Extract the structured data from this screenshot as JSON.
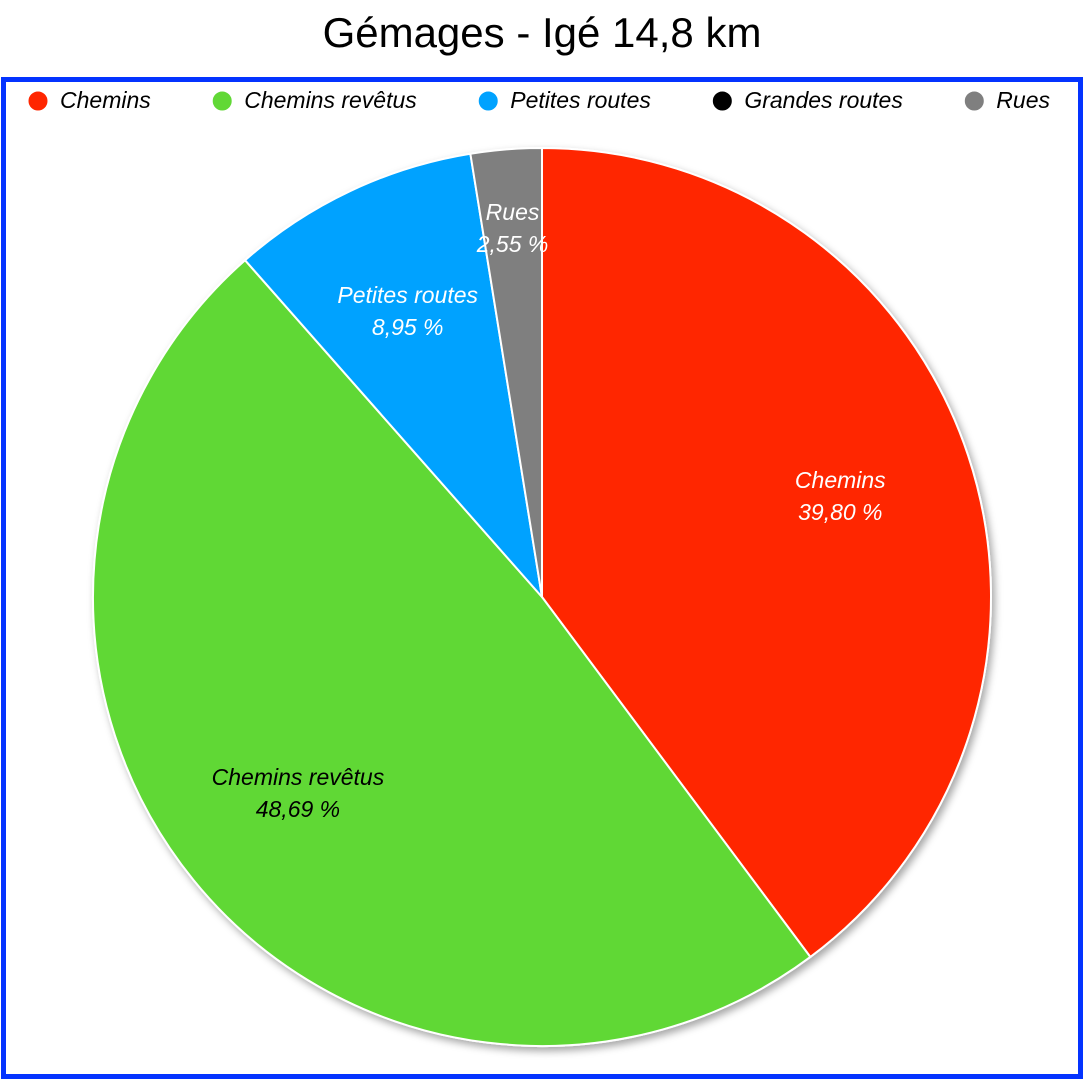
{
  "chart_data": {
    "type": "pie",
    "title": "Gémages - Igé 14,8 km",
    "categories": [
      "Chemins",
      "Chemins revêtus",
      "Petites routes",
      "Grandes routes",
      "Rues"
    ],
    "values": [
      39.8,
      48.69,
      8.95,
      0,
      2.55
    ],
    "value_labels": [
      "39,80 %",
      "48,69 %",
      "8,95 %",
      null,
      "2,55 %"
    ],
    "colors": [
      "#ff2600",
      "#61d836",
      "#00a2ff",
      "#000000",
      "#7f7f7f"
    ],
    "legend": "top"
  }
}
